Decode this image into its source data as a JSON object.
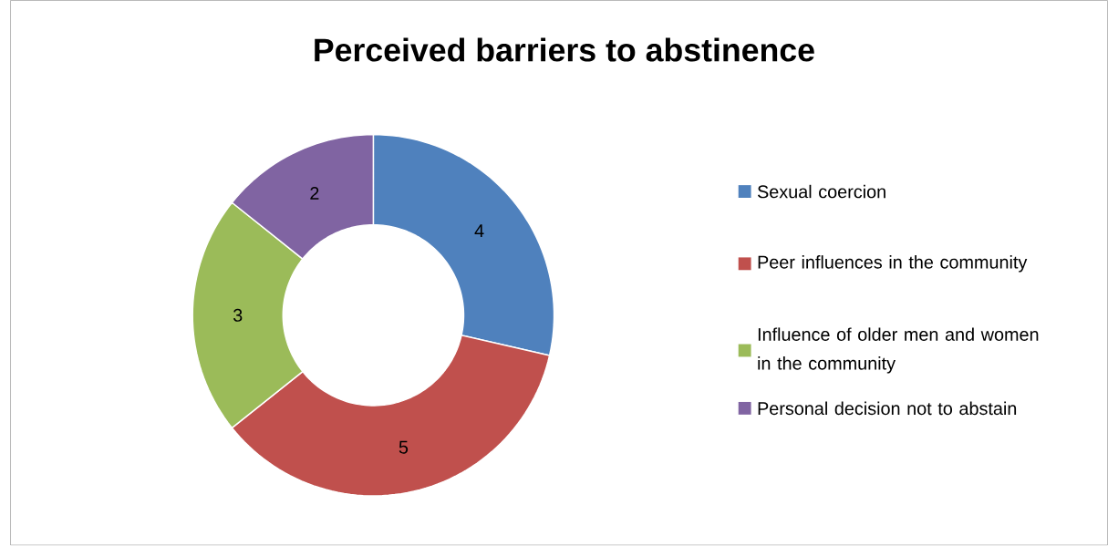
{
  "chart_data": {
    "type": "donut",
    "title": "Perceived barriers to abstinence",
    "categories": [
      "Sexual coercion",
      "Peer influences in the community",
      "Influence of older men and women in the community",
      "Personal decision not to abstain"
    ],
    "values": [
      4,
      5,
      3,
      2
    ],
    "colors": [
      "#4f81bd",
      "#c0504d",
      "#9bbb59",
      "#8064a2"
    ],
    "data_labels": true,
    "legend": "right"
  }
}
